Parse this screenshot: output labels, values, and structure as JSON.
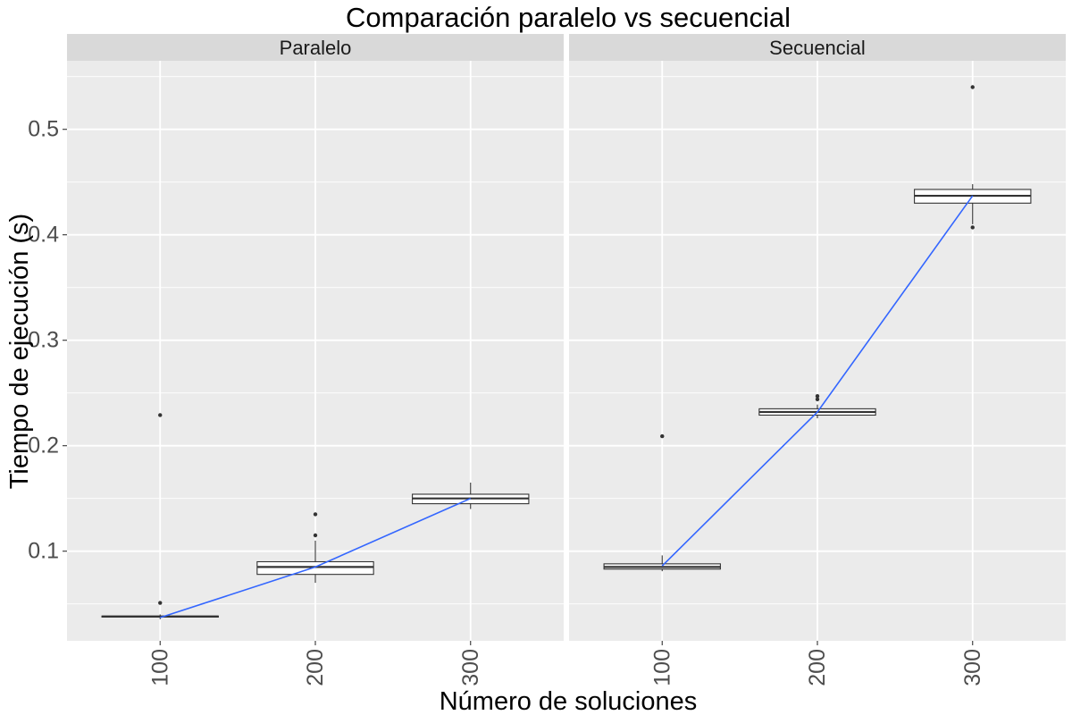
{
  "chart_data": {
    "type": "boxplot",
    "title": "Comparación paralelo vs secuencial",
    "xlabel": "Número de soluciones",
    "ylabel": "Tiempo de ejecución (s)",
    "ylim": [
      0.015,
      0.565
    ],
    "yticks": [
      0.1,
      0.2,
      0.3,
      0.4,
      0.5
    ],
    "ytick_labels": [
      "0.1",
      "0.2",
      "0.3",
      "0.4",
      "0.5"
    ],
    "categories": [
      "100",
      "200",
      "300"
    ],
    "x_range": [
      0.4,
      3.6
    ],
    "grid": true,
    "trend_color": "#3366ff",
    "panel_background": "#ebebeb",
    "strip_background": "#d9d9d9",
    "panels": [
      {
        "name": "Paralelo",
        "boxes": [
          {
            "x": "100",
            "q1": 0.0375,
            "median": 0.038,
            "q3": 0.0385,
            "whisker_low": 0.0355,
            "whisker_high": 0.04,
            "outliers": [
              0.051,
              0.229
            ]
          },
          {
            "x": "200",
            "q1": 0.078,
            "median": 0.085,
            "q3": 0.09,
            "whisker_low": 0.07,
            "whisker_high": 0.11,
            "outliers": [
              0.115,
              0.135
            ]
          },
          {
            "x": "300",
            "q1": 0.145,
            "median": 0.15,
            "q3": 0.154,
            "whisker_low": 0.14,
            "whisker_high": 0.165,
            "outliers": []
          }
        ],
        "trend": [
          0.037,
          0.085,
          0.15
        ]
      },
      {
        "name": "Secuencial",
        "boxes": [
          {
            "x": "100",
            "q1": 0.083,
            "median": 0.085,
            "q3": 0.088,
            "whisker_low": 0.081,
            "whisker_high": 0.096,
            "outliers": [
              0.209
            ]
          },
          {
            "x": "200",
            "q1": 0.229,
            "median": 0.232,
            "q3": 0.235,
            "whisker_low": 0.226,
            "whisker_high": 0.239,
            "outliers": [
              0.244,
              0.247
            ]
          },
          {
            "x": "300",
            "q1": 0.43,
            "median": 0.437,
            "q3": 0.443,
            "whisker_low": 0.41,
            "whisker_high": 0.448,
            "outliers": [
              0.407,
              0.54
            ]
          }
        ],
        "trend": [
          0.086,
          0.232,
          0.437
        ]
      }
    ]
  }
}
